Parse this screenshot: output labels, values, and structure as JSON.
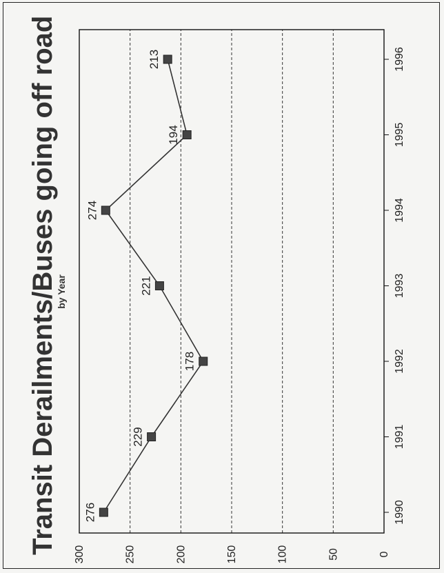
{
  "chart_data": {
    "type": "line",
    "title": "Transit Derailments/Buses going off road",
    "subtitle": "by Year",
    "xlabel": "",
    "ylabel": "",
    "categories": [
      "1990",
      "1991",
      "1992",
      "1993",
      "1994",
      "1995",
      "1996"
    ],
    "series": [
      {
        "values": [
          276,
          229,
          178,
          221,
          274,
          194,
          213
        ]
      }
    ],
    "data_labels": [
      "276",
      "229",
      "178",
      "221",
      "274",
      "194",
      "213"
    ],
    "ylim": [
      0,
      300
    ],
    "yticks": [
      "0",
      "50",
      "100",
      "150",
      "200",
      "250",
      "300"
    ],
    "grid": "horizontal dashed",
    "legend": "none",
    "orientation": "rotated 90 degrees counter-clockwise",
    "colors": {
      "line": "#333333",
      "marker": "#444444",
      "background": "#f5f5f3"
    }
  }
}
